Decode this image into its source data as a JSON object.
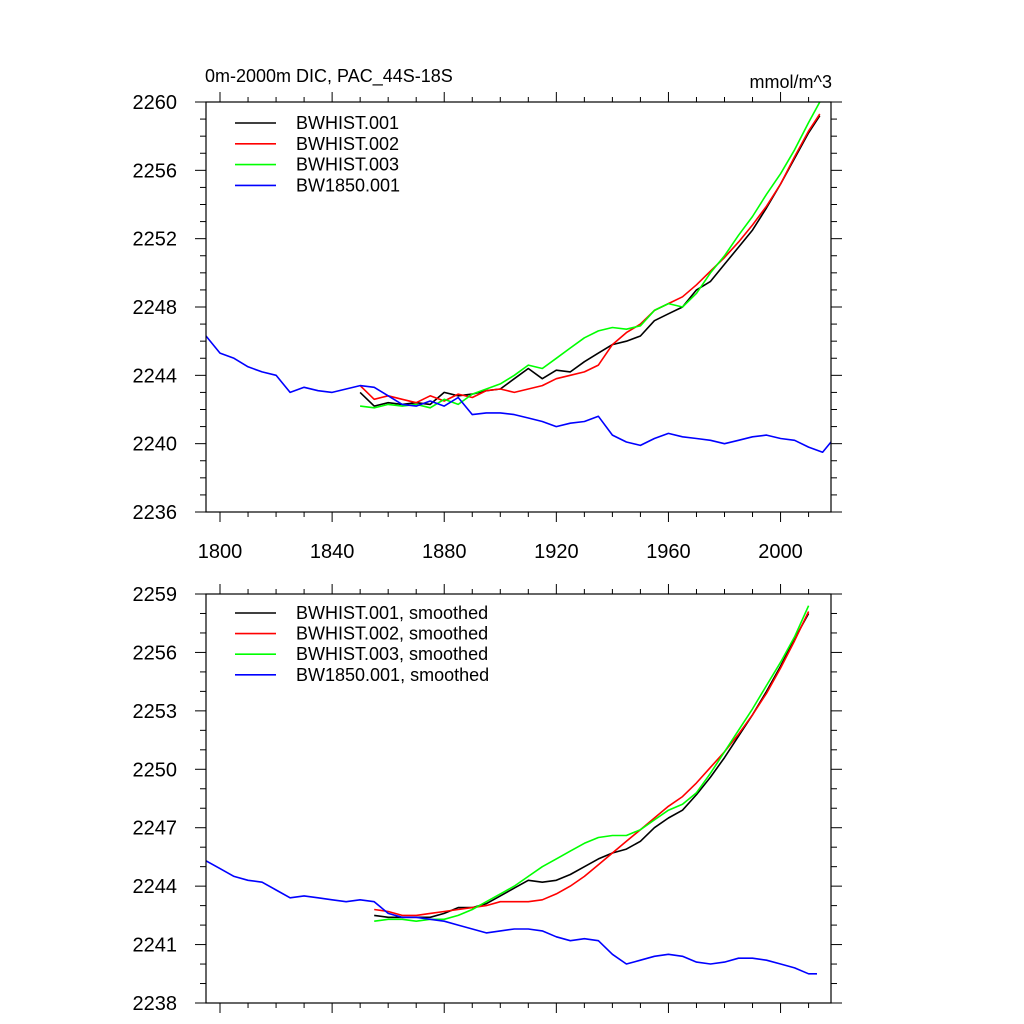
{
  "chart_data": [
    {
      "type": "line",
      "title": "0m-2000m DIC, PAC_44S-18S",
      "units": "mmol/m^3",
      "xlim": [
        1795,
        2018
      ],
      "ylim": [
        2236,
        2260
      ],
      "xticks": [
        1800,
        1840,
        1880,
        1920,
        1960,
        2000
      ],
      "yticks": [
        2236,
        2240,
        2244,
        2248,
        2252,
        2256,
        2260
      ],
      "legend_position": "top-left",
      "grid": false,
      "series": [
        {
          "name": "BWHIST.001",
          "color": "#000000",
          "x": [
            1850,
            1855,
            1860,
            1865,
            1870,
            1875,
            1880,
            1885,
            1890,
            1895,
            1900,
            1905,
            1910,
            1915,
            1920,
            1925,
            1930,
            1935,
            1940,
            1945,
            1950,
            1955,
            1960,
            1965,
            1970,
            1975,
            1980,
            1985,
            1990,
            1995,
            2000,
            2005,
            2010,
            2014
          ],
          "y": [
            2243.0,
            2242.2,
            2242.4,
            2242.3,
            2242.4,
            2242.3,
            2243.0,
            2242.8,
            2242.9,
            2243.1,
            2243.2,
            2243.8,
            2244.4,
            2243.8,
            2244.3,
            2244.2,
            2244.8,
            2245.3,
            2245.8,
            2246.0,
            2246.3,
            2247.2,
            2247.6,
            2248.0,
            2249.0,
            2249.5,
            2250.5,
            2251.5,
            2252.5,
            2253.8,
            2255.2,
            2256.7,
            2258.2,
            2259.2
          ]
        },
        {
          "name": "BWHIST.002",
          "color": "#ff0000",
          "x": [
            1850,
            1855,
            1860,
            1865,
            1870,
            1875,
            1880,
            1885,
            1890,
            1895,
            1900,
            1905,
            1910,
            1915,
            1920,
            1925,
            1930,
            1935,
            1940,
            1945,
            1950,
            1955,
            1960,
            1965,
            1970,
            1975,
            1980,
            1985,
            1990,
            1995,
            2000,
            2005,
            2010,
            2014
          ],
          "y": [
            2243.4,
            2242.6,
            2242.8,
            2242.6,
            2242.4,
            2242.8,
            2242.5,
            2242.9,
            2242.7,
            2243.1,
            2243.2,
            2243.0,
            2243.2,
            2243.4,
            2243.8,
            2244.0,
            2244.2,
            2244.6,
            2245.8,
            2246.5,
            2247.0,
            2247.8,
            2248.2,
            2248.6,
            2249.3,
            2250.1,
            2250.9,
            2251.8,
            2252.8,
            2253.9,
            2255.2,
            2256.8,
            2258.3,
            2259.3
          ]
        },
        {
          "name": "BWHIST.003",
          "color": "#00ff00",
          "x": [
            1850,
            1855,
            1860,
            1865,
            1870,
            1875,
            1880,
            1885,
            1890,
            1895,
            1900,
            1905,
            1910,
            1915,
            1920,
            1925,
            1930,
            1935,
            1940,
            1945,
            1950,
            1955,
            1960,
            1965,
            1970,
            1975,
            1980,
            1985,
            1990,
            1995,
            2000,
            2005,
            2010,
            2014
          ],
          "y": [
            2242.2,
            2242.1,
            2242.3,
            2242.2,
            2242.3,
            2242.1,
            2242.6,
            2242.3,
            2242.9,
            2243.2,
            2243.5,
            2244.0,
            2244.6,
            2244.4,
            2245.0,
            2245.6,
            2246.2,
            2246.6,
            2246.8,
            2246.7,
            2246.9,
            2247.8,
            2248.2,
            2248.0,
            2248.8,
            2250.0,
            2251.0,
            2252.2,
            2253.3,
            2254.6,
            2255.8,
            2257.2,
            2258.8,
            2260.0
          ]
        },
        {
          "name": "BW1850.001",
          "color": "#0000ff",
          "x": [
            1795,
            1800,
            1805,
            1810,
            1815,
            1820,
            1825,
            1830,
            1835,
            1840,
            1845,
            1850,
            1855,
            1860,
            1865,
            1870,
            1875,
            1880,
            1885,
            1890,
            1895,
            1900,
            1905,
            1910,
            1915,
            1920,
            1925,
            1930,
            1935,
            1940,
            1945,
            1950,
            1955,
            1960,
            1965,
            1970,
            1975,
            1980,
            1985,
            1990,
            1995,
            2000,
            2005,
            2010,
            2015,
            2018
          ],
          "y": [
            2246.3,
            2245.3,
            2245.0,
            2244.5,
            2244.2,
            2244.0,
            2243.0,
            2243.3,
            2243.1,
            2243.0,
            2243.2,
            2243.4,
            2243.3,
            2242.8,
            2242.3,
            2242.2,
            2242.5,
            2242.2,
            2242.7,
            2241.7,
            2241.8,
            2241.8,
            2241.7,
            2241.5,
            2241.3,
            2241.0,
            2241.2,
            2241.3,
            2241.6,
            2240.5,
            2240.1,
            2239.9,
            2240.3,
            2240.6,
            2240.4,
            2240.3,
            2240.2,
            2240.0,
            2240.2,
            2240.4,
            2240.5,
            2240.3,
            2240.2,
            2239.8,
            2239.5,
            2240.1
          ]
        }
      ]
    },
    {
      "type": "line",
      "xlim": [
        1795,
        2018
      ],
      "ylim": [
        2238,
        2259
      ],
      "xticks": [
        1800,
        1840,
        1880,
        1920,
        1960,
        2000
      ],
      "yticks": [
        2238,
        2241,
        2244,
        2247,
        2250,
        2253,
        2256,
        2259
      ],
      "legend_position": "top-left",
      "grid": false,
      "series": [
        {
          "name": "BWHIST.001, smoothed",
          "color": "#000000",
          "x": [
            1855,
            1860,
            1865,
            1870,
            1875,
            1880,
            1885,
            1890,
            1895,
            1900,
            1905,
            1910,
            1915,
            1920,
            1925,
            1930,
            1935,
            1940,
            1945,
            1950,
            1955,
            1960,
            1965,
            1970,
            1975,
            1980,
            1985,
            1990,
            1995,
            2000,
            2005,
            2010
          ],
          "y": [
            2242.5,
            2242.4,
            2242.4,
            2242.4,
            2242.4,
            2242.6,
            2242.9,
            2242.9,
            2243.1,
            2243.5,
            2243.9,
            2244.3,
            2244.2,
            2244.3,
            2244.6,
            2245.0,
            2245.4,
            2245.7,
            2245.9,
            2246.3,
            2247.0,
            2247.5,
            2247.9,
            2248.7,
            2249.6,
            2250.6,
            2251.7,
            2252.8,
            2254.0,
            2255.3,
            2256.7,
            2258.0
          ]
        },
        {
          "name": "BWHIST.002, smoothed",
          "color": "#ff0000",
          "x": [
            1855,
            1860,
            1865,
            1870,
            1875,
            1880,
            1885,
            1890,
            1895,
            1900,
            1905,
            1910,
            1915,
            1920,
            1925,
            1930,
            1935,
            1940,
            1945,
            1950,
            1955,
            1960,
            1965,
            1970,
            1975,
            1980,
            1985,
            1990,
            1995,
            2000,
            2005,
            2010
          ],
          "y": [
            2242.8,
            2242.7,
            2242.5,
            2242.5,
            2242.6,
            2242.7,
            2242.8,
            2242.9,
            2243.0,
            2243.2,
            2243.2,
            2243.2,
            2243.3,
            2243.6,
            2244.0,
            2244.5,
            2245.1,
            2245.7,
            2246.3,
            2246.9,
            2247.5,
            2248.1,
            2248.6,
            2249.3,
            2250.1,
            2250.9,
            2251.8,
            2252.8,
            2253.9,
            2255.2,
            2256.6,
            2258.1
          ]
        },
        {
          "name": "BWHIST.003, smoothed",
          "color": "#00ff00",
          "x": [
            1855,
            1860,
            1865,
            1870,
            1875,
            1880,
            1885,
            1890,
            1895,
            1900,
            1905,
            1910,
            1915,
            1920,
            1925,
            1930,
            1935,
            1940,
            1945,
            1950,
            1955,
            1960,
            1965,
            1970,
            1975,
            1980,
            1985,
            1990,
            1995,
            2000,
            2005,
            2010
          ],
          "y": [
            2242.2,
            2242.3,
            2242.3,
            2242.2,
            2242.3,
            2242.3,
            2242.5,
            2242.8,
            2243.2,
            2243.6,
            2244.0,
            2244.5,
            2245.0,
            2245.4,
            2245.8,
            2246.2,
            2246.5,
            2246.6,
            2246.6,
            2246.9,
            2247.4,
            2247.9,
            2248.2,
            2248.8,
            2249.8,
            2250.9,
            2252.0,
            2253.1,
            2254.3,
            2255.5,
            2256.8,
            2258.4
          ]
        },
        {
          "name": "BW1850.001, smoothed",
          "color": "#0000ff",
          "x": [
            1795,
            1800,
            1805,
            1810,
            1815,
            1820,
            1825,
            1830,
            1835,
            1840,
            1845,
            1850,
            1855,
            1860,
            1865,
            1870,
            1875,
            1880,
            1885,
            1890,
            1895,
            1900,
            1905,
            1910,
            1915,
            1920,
            1925,
            1930,
            1935,
            1940,
            1945,
            1950,
            1955,
            1960,
            1965,
            1970,
            1975,
            1980,
            1985,
            1990,
            1995,
            2000,
            2005,
            2010,
            2013
          ],
          "y": [
            2245.3,
            2244.9,
            2244.5,
            2244.3,
            2244.2,
            2243.8,
            2243.4,
            2243.5,
            2243.4,
            2243.3,
            2243.2,
            2243.3,
            2243.2,
            2242.6,
            2242.4,
            2242.4,
            2242.3,
            2242.2,
            2242.0,
            2241.8,
            2241.6,
            2241.7,
            2241.8,
            2241.8,
            2241.7,
            2241.4,
            2241.2,
            2241.3,
            2241.2,
            2240.5,
            2240.0,
            2240.2,
            2240.4,
            2240.5,
            2240.4,
            2240.1,
            2240.0,
            2240.1,
            2240.3,
            2240.3,
            2240.2,
            2240.0,
            2239.8,
            2239.5,
            2239.5
          ]
        }
      ]
    }
  ]
}
